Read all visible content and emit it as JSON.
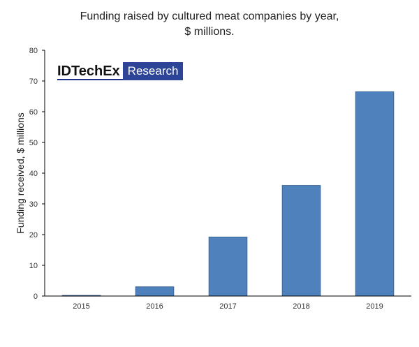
{
  "chart_data": {
    "type": "bar",
    "title": "Funding  raised by cultured  meat  companies  by year,",
    "subtitle": "$ millions.",
    "ylabel": "Funding  received,  $ millions",
    "xlabel": "",
    "categories": [
      "2015",
      "2016",
      "2017",
      "2018",
      "2019"
    ],
    "values": [
      0.2,
      3,
      19.2,
      36,
      66.5
    ],
    "ylim": [
      0,
      80
    ],
    "yticks": [
      0,
      10,
      20,
      30,
      40,
      50,
      60,
      70,
      80
    ],
    "grid": false,
    "bar_color": "#4f81bd"
  },
  "logo": {
    "brand": "IDTechEx",
    "sub": "Research"
  }
}
